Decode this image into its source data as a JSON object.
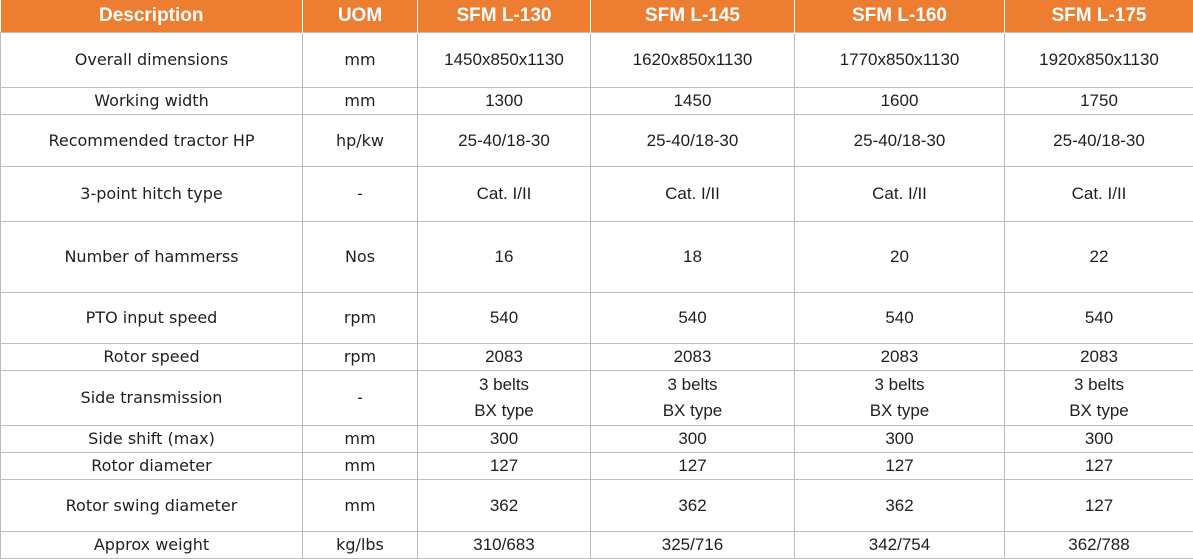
{
  "header": [
    "Description",
    "UOM",
    "SFM L-130",
    "SFM L-145",
    "SFM L-160",
    "SFM L-175"
  ],
  "rows": [
    {
      "desc": "Overall dimensions",
      "uom": "mm",
      "v": [
        "1450x850x1130",
        "1620x850x1130",
        "1770x850x1130",
        "1920x850x1130"
      ]
    },
    {
      "desc": "Working width",
      "uom": "mm",
      "v": [
        "1300",
        "1450",
        "1600",
        "1750"
      ]
    },
    {
      "desc": "Recommended tractor HP",
      "uom": "hp/kw",
      "v": [
        "25-40/18-30",
        "25-40/18-30",
        "25-40/18-30",
        "25-40/18-30"
      ]
    },
    {
      "desc": "3-point hitch type",
      "uom": "-",
      "v": [
        "Cat. I/II",
        "Cat. I/II",
        "Cat. I/II",
        "Cat. I/II"
      ]
    },
    {
      "desc": "Number of hammerss",
      "uom": "Nos",
      "v": [
        "16",
        "18",
        "20",
        "22"
      ]
    },
    {
      "desc": "PTO input speed",
      "uom": "rpm",
      "v": [
        "540",
        "540",
        "540",
        "540"
      ]
    },
    {
      "desc": "Rotor speed",
      "uom": "rpm",
      "v": [
        "2083",
        "2083",
        "2083",
        "2083"
      ]
    },
    {
      "desc": "Side transmission",
      "uom": "-",
      "v": [
        [
          "3 belts",
          "BX type"
        ],
        [
          "3 belts",
          "BX type"
        ],
        [
          "3 belts",
          "BX type"
        ],
        [
          "3 belts",
          "BX type"
        ]
      ]
    },
    {
      "desc": "Side shift (max)",
      "uom": "mm",
      "v": [
        "300",
        "300",
        "300",
        "300"
      ]
    },
    {
      "desc": "Rotor diameter",
      "uom": "mm",
      "v": [
        "127",
        "127",
        "127",
        "127"
      ]
    },
    {
      "desc": "Rotor swing diameter",
      "uom": "mm",
      "v": [
        "362",
        "362",
        "362",
        "127"
      ]
    },
    {
      "desc": "Approx weight",
      "uom": "kg/lbs",
      "v": [
        "310/683",
        "325/716",
        "342/754",
        "362/788"
      ]
    }
  ]
}
